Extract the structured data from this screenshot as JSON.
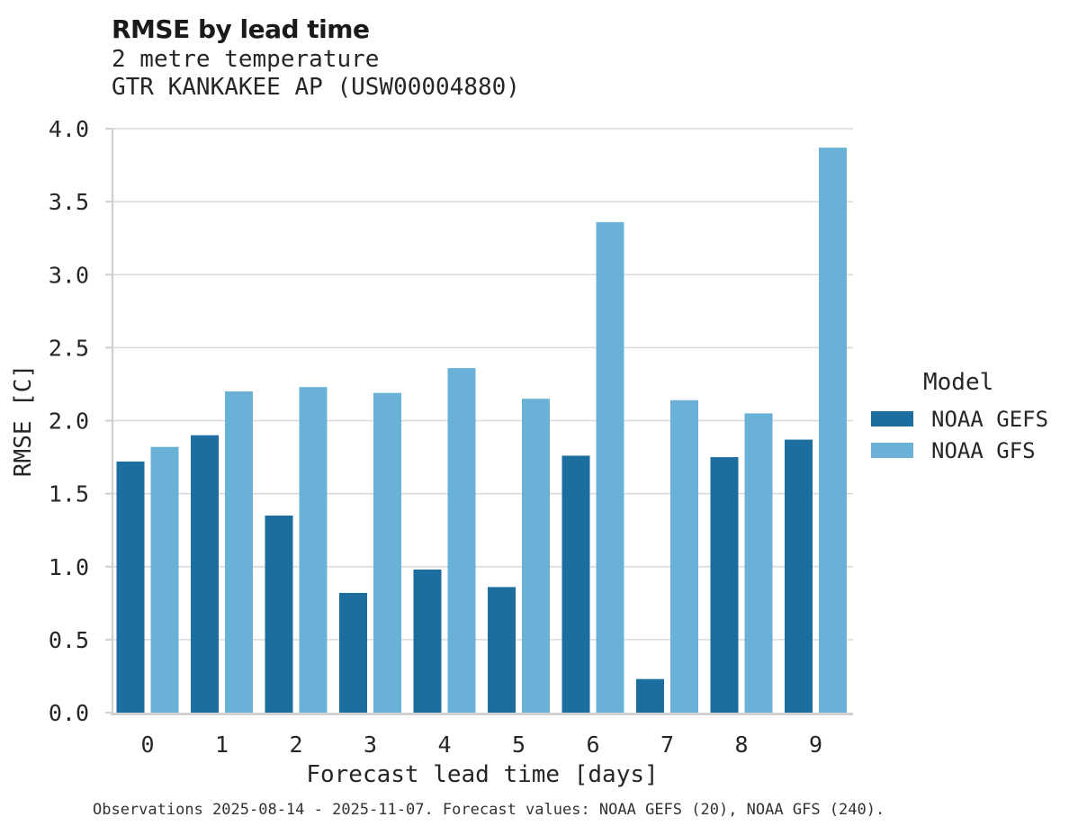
{
  "chart_data": {
    "type": "bar",
    "title": "RMSE by lead time",
    "subtitle1": "2 metre temperature",
    "subtitle2": "GTR KANKAKEE AP (USW00004880)",
    "xlabel": "Forecast lead time [days]",
    "ylabel": "RMSE [C]",
    "categories": [
      "0",
      "1",
      "2",
      "3",
      "4",
      "5",
      "6",
      "7",
      "8",
      "9"
    ],
    "series": [
      {
        "name": "NOAA GEFS",
        "color": "#1b6e9d",
        "values": [
          1.72,
          1.9,
          1.35,
          0.82,
          0.98,
          0.86,
          1.76,
          0.23,
          1.75,
          1.87
        ]
      },
      {
        "name": "NOAA GFS",
        "color": "#6ab1d8",
        "values": [
          1.82,
          2.2,
          2.23,
          2.19,
          2.36,
          2.15,
          3.36,
          2.14,
          2.05,
          3.87
        ]
      }
    ],
    "ylim": [
      0,
      4
    ],
    "ytick_step": 0.5,
    "grid": true,
    "legend": {
      "title": "Model",
      "position": "right"
    },
    "caption": "Observations 2025-08-14 - 2025-11-07. Forecast values: NOAA GEFS (20), NOAA GFS (240).",
    "colors": {
      "grid": "#d9d9d9",
      "spine": "#d0d0d0",
      "text": "#262626",
      "caption_text": "#333333"
    }
  }
}
